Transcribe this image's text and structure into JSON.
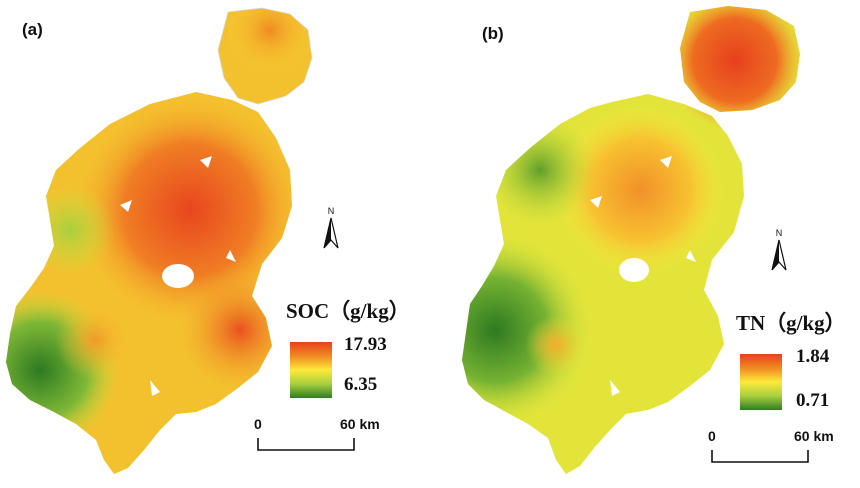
{
  "panels": [
    {
      "label": "(a)",
      "legend": {
        "title": "SOC（g/kg）",
        "max": "17.93",
        "min": "6.35"
      },
      "scale": {
        "start": "0",
        "end": "60 km"
      },
      "north": "N"
    },
    {
      "label": "(b)",
      "legend": {
        "title": "TN（g/kg）",
        "max": "1.84",
        "min": "0.71"
      },
      "scale": {
        "start": "0",
        "end": "60 km"
      },
      "north": "N"
    }
  ],
  "colors": {
    "high": "#e8401d",
    "mid_high": "#f08a22",
    "mid": "#fde93a",
    "mid_low": "#a7cf3e",
    "low": "#2e7d22"
  }
}
